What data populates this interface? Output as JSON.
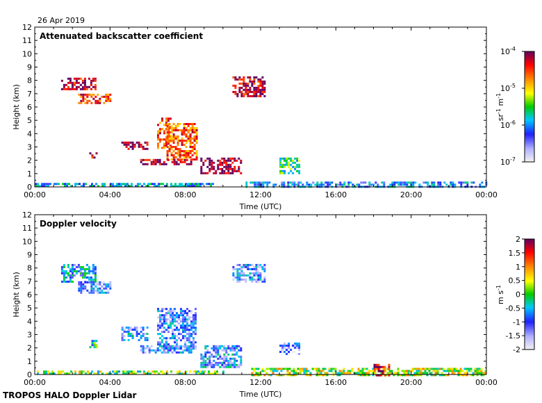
{
  "date_label": "26 Apr 2019",
  "footer": "TROPOS HALO Doppler Lidar",
  "chart_data": [
    {
      "type": "heatmap",
      "title": "Attenuated backscatter coefficient",
      "xlabel": "Time (UTC)",
      "ylabel": "Height (km)",
      "xlim": [
        0,
        24
      ],
      "ylim": [
        0,
        12
      ],
      "x_ticks": [
        "00:00",
        "04:00",
        "08:00",
        "12:00",
        "16:00",
        "20:00",
        "00:00"
      ],
      "y_ticks": [
        0,
        1,
        2,
        3,
        4,
        5,
        6,
        7,
        8,
        9,
        10,
        11,
        12
      ],
      "colorbar": {
        "scale": "log",
        "range": [
          1e-07,
          0.0001
        ],
        "tick_labels": [
          {
            "base": "10",
            "exp": "-4",
            "value": -4
          },
          {
            "base": "10",
            "exp": "-5",
            "value": -5
          },
          {
            "base": "10",
            "exp": "-6",
            "value": -6
          },
          {
            "base": "10",
            "exp": "-7",
            "value": -7
          }
        ],
        "unit": {
          "a": "sr",
          "a_exp": "-1",
          "b": "m",
          "b_exp": "-1"
        }
      },
      "features": [
        {
          "x0": 1.4,
          "x1": 3.2,
          "y0": 7.3,
          "y1": 8.2,
          "level": -4.2
        },
        {
          "x0": 2.3,
          "x1": 4.0,
          "y0": 6.3,
          "y1": 7.0,
          "level": -4.5
        },
        {
          "x0": 10.5,
          "x1": 12.2,
          "y0": 6.8,
          "y1": 8.3,
          "level": -4.2
        },
        {
          "x0": 6.5,
          "x1": 7.2,
          "y0": 3.0,
          "y1": 5.2,
          "level": -4.6
        },
        {
          "x0": 7.0,
          "x1": 8.6,
          "y0": 2.0,
          "y1": 4.8,
          "level": -4.6
        },
        {
          "x0": 4.6,
          "x1": 6.0,
          "y0": 2.8,
          "y1": 3.4,
          "level": -4.1
        },
        {
          "x0": 5.6,
          "x1": 8.3,
          "y0": 1.7,
          "y1": 2.1,
          "level": -4.1
        },
        {
          "x0": 8.8,
          "x1": 11.0,
          "y0": 1.1,
          "y1": 2.2,
          "level": -4.1
        },
        {
          "x0": 2.9,
          "x1": 3.3,
          "y0": 2.2,
          "y1": 2.6,
          "level": -4.2
        },
        {
          "x0": 13.0,
          "x1": 14.0,
          "y0": 1.0,
          "y1": 2.2,
          "level": -5.6
        },
        {
          "x0": 0.0,
          "x1": 9.5,
          "y0": 0.0,
          "y1": 0.3,
          "level": -5.9
        },
        {
          "x0": 11.2,
          "x1": 24.0,
          "y0": 0.0,
          "y1": 0.4,
          "level": -6.1
        }
      ]
    },
    {
      "type": "heatmap",
      "title": "Doppler velocity",
      "xlabel": "Time (UTC)",
      "ylabel": "Height (km)",
      "xlim": [
        0,
        24
      ],
      "ylim": [
        0,
        12
      ],
      "x_ticks": [
        "00:00",
        "04:00",
        "08:00",
        "12:00",
        "16:00",
        "20:00",
        "00:00"
      ],
      "y_ticks": [
        0,
        1,
        2,
        3,
        4,
        5,
        6,
        7,
        8,
        9,
        10,
        11,
        12
      ],
      "colorbar": {
        "scale": "linear",
        "range": [
          -2,
          2
        ],
        "tick_labels": [
          "2",
          "1.5",
          "1",
          "0.5",
          "0",
          "-0.5",
          "-1",
          "-1.5",
          "-2"
        ],
        "unit": {
          "a": "m",
          "b": "s",
          "b_exp": "-1"
        }
      },
      "features": [
        {
          "x0": 1.4,
          "x1": 3.2,
          "y0": 7.0,
          "y1": 8.3,
          "level": -0.7
        },
        {
          "x0": 2.3,
          "x1": 4.0,
          "y0": 6.2,
          "y1": 7.0,
          "level": -1.1
        },
        {
          "x0": 10.5,
          "x1": 12.2,
          "y0": 7.0,
          "y1": 8.3,
          "level": -1.0
        },
        {
          "x0": 6.5,
          "x1": 8.6,
          "y0": 2.0,
          "y1": 5.0,
          "level": -1.1
        },
        {
          "x0": 4.6,
          "x1": 6.0,
          "y0": 2.6,
          "y1": 3.6,
          "level": -0.9
        },
        {
          "x0": 5.6,
          "x1": 8.3,
          "y0": 1.7,
          "y1": 2.2,
          "level": -1.0
        },
        {
          "x0": 8.8,
          "x1": 11.0,
          "y0": 0.6,
          "y1": 2.2,
          "level": -0.9
        },
        {
          "x0": 2.9,
          "x1": 3.3,
          "y0": 2.0,
          "y1": 2.6,
          "level": -0.4
        },
        {
          "x0": 13.0,
          "x1": 14.0,
          "y0": 1.6,
          "y1": 2.4,
          "level": -1.3
        },
        {
          "x0": 0.0,
          "x1": 10.0,
          "y0": 0.0,
          "y1": 0.3,
          "level": 0.1
        },
        {
          "x0": 11.5,
          "x1": 24.0,
          "y0": 0.0,
          "y1": 0.5,
          "level": 0.3
        },
        {
          "x0": 18.0,
          "x1": 18.8,
          "y0": 0.0,
          "y1": 0.8,
          "level": 1.6
        }
      ]
    }
  ]
}
